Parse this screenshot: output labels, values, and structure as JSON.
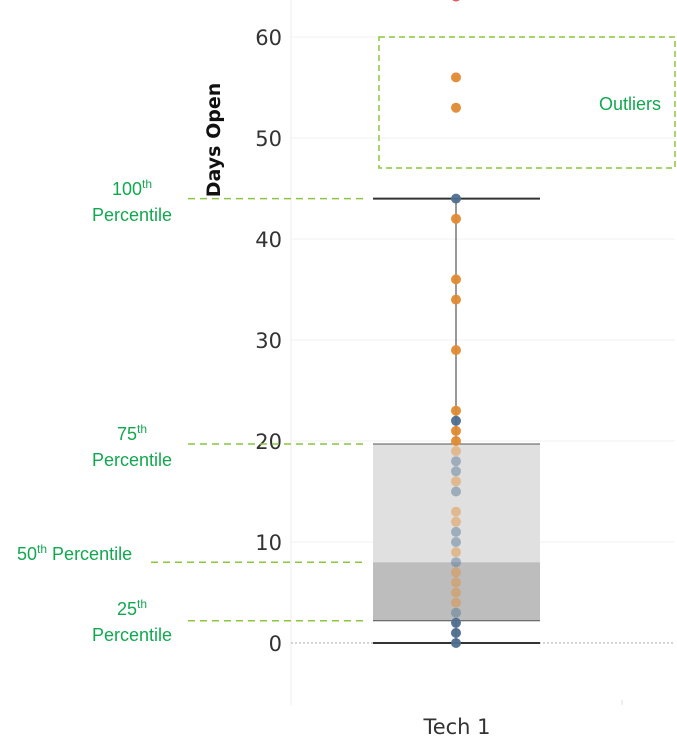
{
  "chart_data": {
    "type": "box",
    "ylabel": "Days Open",
    "categories": [
      "Tech 1"
    ],
    "yticks": [
      0,
      10,
      20,
      30,
      40,
      50,
      60
    ],
    "ylim": [
      -6,
      64
    ],
    "grid": true,
    "box": {
      "min": 0,
      "q1": 2.2,
      "median": 8,
      "q3": 19.7,
      "max": 44
    },
    "points": [
      {
        "y": 0,
        "color": "#4e6e8e"
      },
      {
        "y": 1,
        "color": "#4e6e8e"
      },
      {
        "y": 2,
        "color": "#4e6e8e"
      },
      {
        "y": 3,
        "color": "#4e6e8e"
      },
      {
        "y": 4,
        "color": "#e08a30"
      },
      {
        "y": 5,
        "color": "#e08a30"
      },
      {
        "y": 6,
        "color": "#e08a30"
      },
      {
        "y": 7,
        "color": "#e08a30"
      },
      {
        "y": 8,
        "color": "#4e6e8e"
      },
      {
        "y": 9,
        "color": "#e08a30"
      },
      {
        "y": 10,
        "color": "#4e6e8e"
      },
      {
        "y": 11,
        "color": "#4e6e8e"
      },
      {
        "y": 12,
        "color": "#e08a30"
      },
      {
        "y": 13,
        "color": "#e08a30"
      },
      {
        "y": 15,
        "color": "#4e6e8e"
      },
      {
        "y": 16,
        "color": "#e08a30"
      },
      {
        "y": 17,
        "color": "#4e6e8e"
      },
      {
        "y": 18,
        "color": "#4e6e8e"
      },
      {
        "y": 19,
        "color": "#e08a30"
      },
      {
        "y": 20,
        "color": "#e08a30"
      },
      {
        "y": 21,
        "color": "#e08a30"
      },
      {
        "y": 22,
        "color": "#4e6e8e"
      },
      {
        "y": 23,
        "color": "#e08a30"
      },
      {
        "y": 29,
        "color": "#e08a30"
      },
      {
        "y": 34,
        "color": "#e08a30"
      },
      {
        "y": 36,
        "color": "#e08a30"
      },
      {
        "y": 42,
        "color": "#e08a30"
      },
      {
        "y": 44,
        "color": "#4e6e8e"
      },
      {
        "y": 53,
        "color": "#e08a30"
      },
      {
        "y": 56,
        "color": "#e08a30"
      },
      {
        "y": 64,
        "color": "#e05560"
      }
    ],
    "annotations": {
      "outliers": "Outliers",
      "p100": {
        "line1_num": "100",
        "line1_sup": "th",
        "line2": "Percentile",
        "value": 44
      },
      "p75": {
        "line1_num": "75",
        "line1_sup": "th",
        "line2": "Percentile",
        "value": 19.7
      },
      "p50": {
        "num": "50",
        "sup": "th",
        "text": " Percentile",
        "value": 8
      },
      "p25": {
        "line1_num": "25",
        "line1_sup": "th",
        "line2": "Percentile",
        "value": 2.2
      }
    },
    "colors": {
      "annotation": "#12a850",
      "guide_line": "#8cc63f",
      "box_upper": "#e0e0e0",
      "box_lower": "#bdbdbd",
      "whisker": "#333333"
    }
  }
}
